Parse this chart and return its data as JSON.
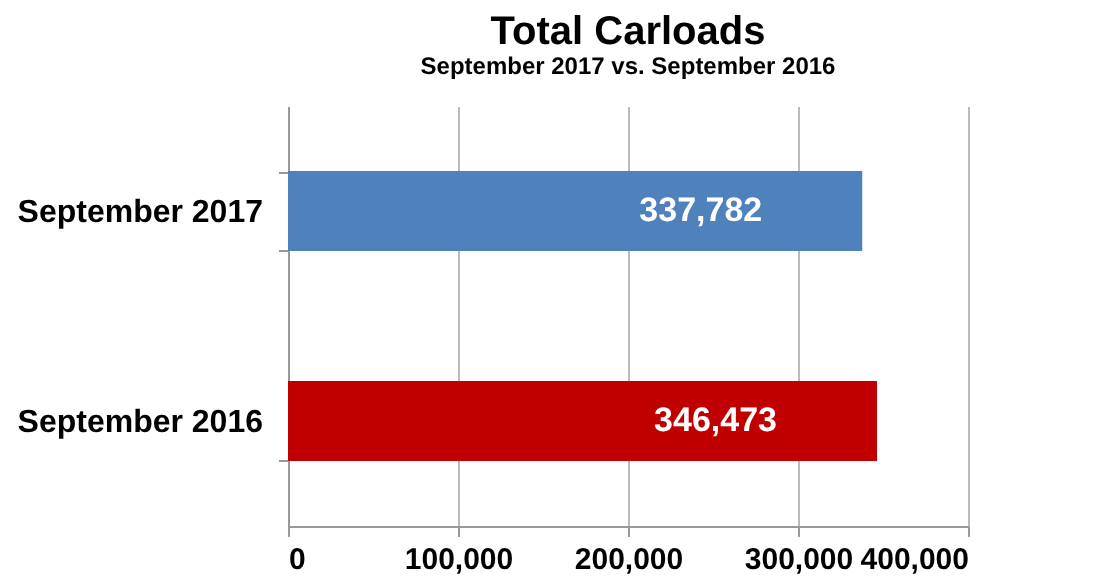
{
  "chart_data": {
    "type": "bar",
    "orientation": "horizontal",
    "title": "Total Carloads",
    "subtitle": "September 2017 vs. September 2016",
    "categories": [
      "September 2017",
      "September 2016"
    ],
    "values": [
      337782,
      346473
    ],
    "value_labels": [
      "337,782",
      "346,473"
    ],
    "colors": [
      "#4f81bd",
      "#c00000"
    ],
    "xlim": [
      0,
      400000
    ],
    "xticks": [
      {
        "value": 0,
        "label": "0"
      },
      {
        "value": 100000,
        "label": "100,000"
      },
      {
        "value": 200000,
        "label": "200,000"
      },
      {
        "value": 300000,
        "label": "300,000"
      },
      {
        "value": 400000,
        "label": "400,000"
      }
    ],
    "grid": "x",
    "legend": false
  }
}
